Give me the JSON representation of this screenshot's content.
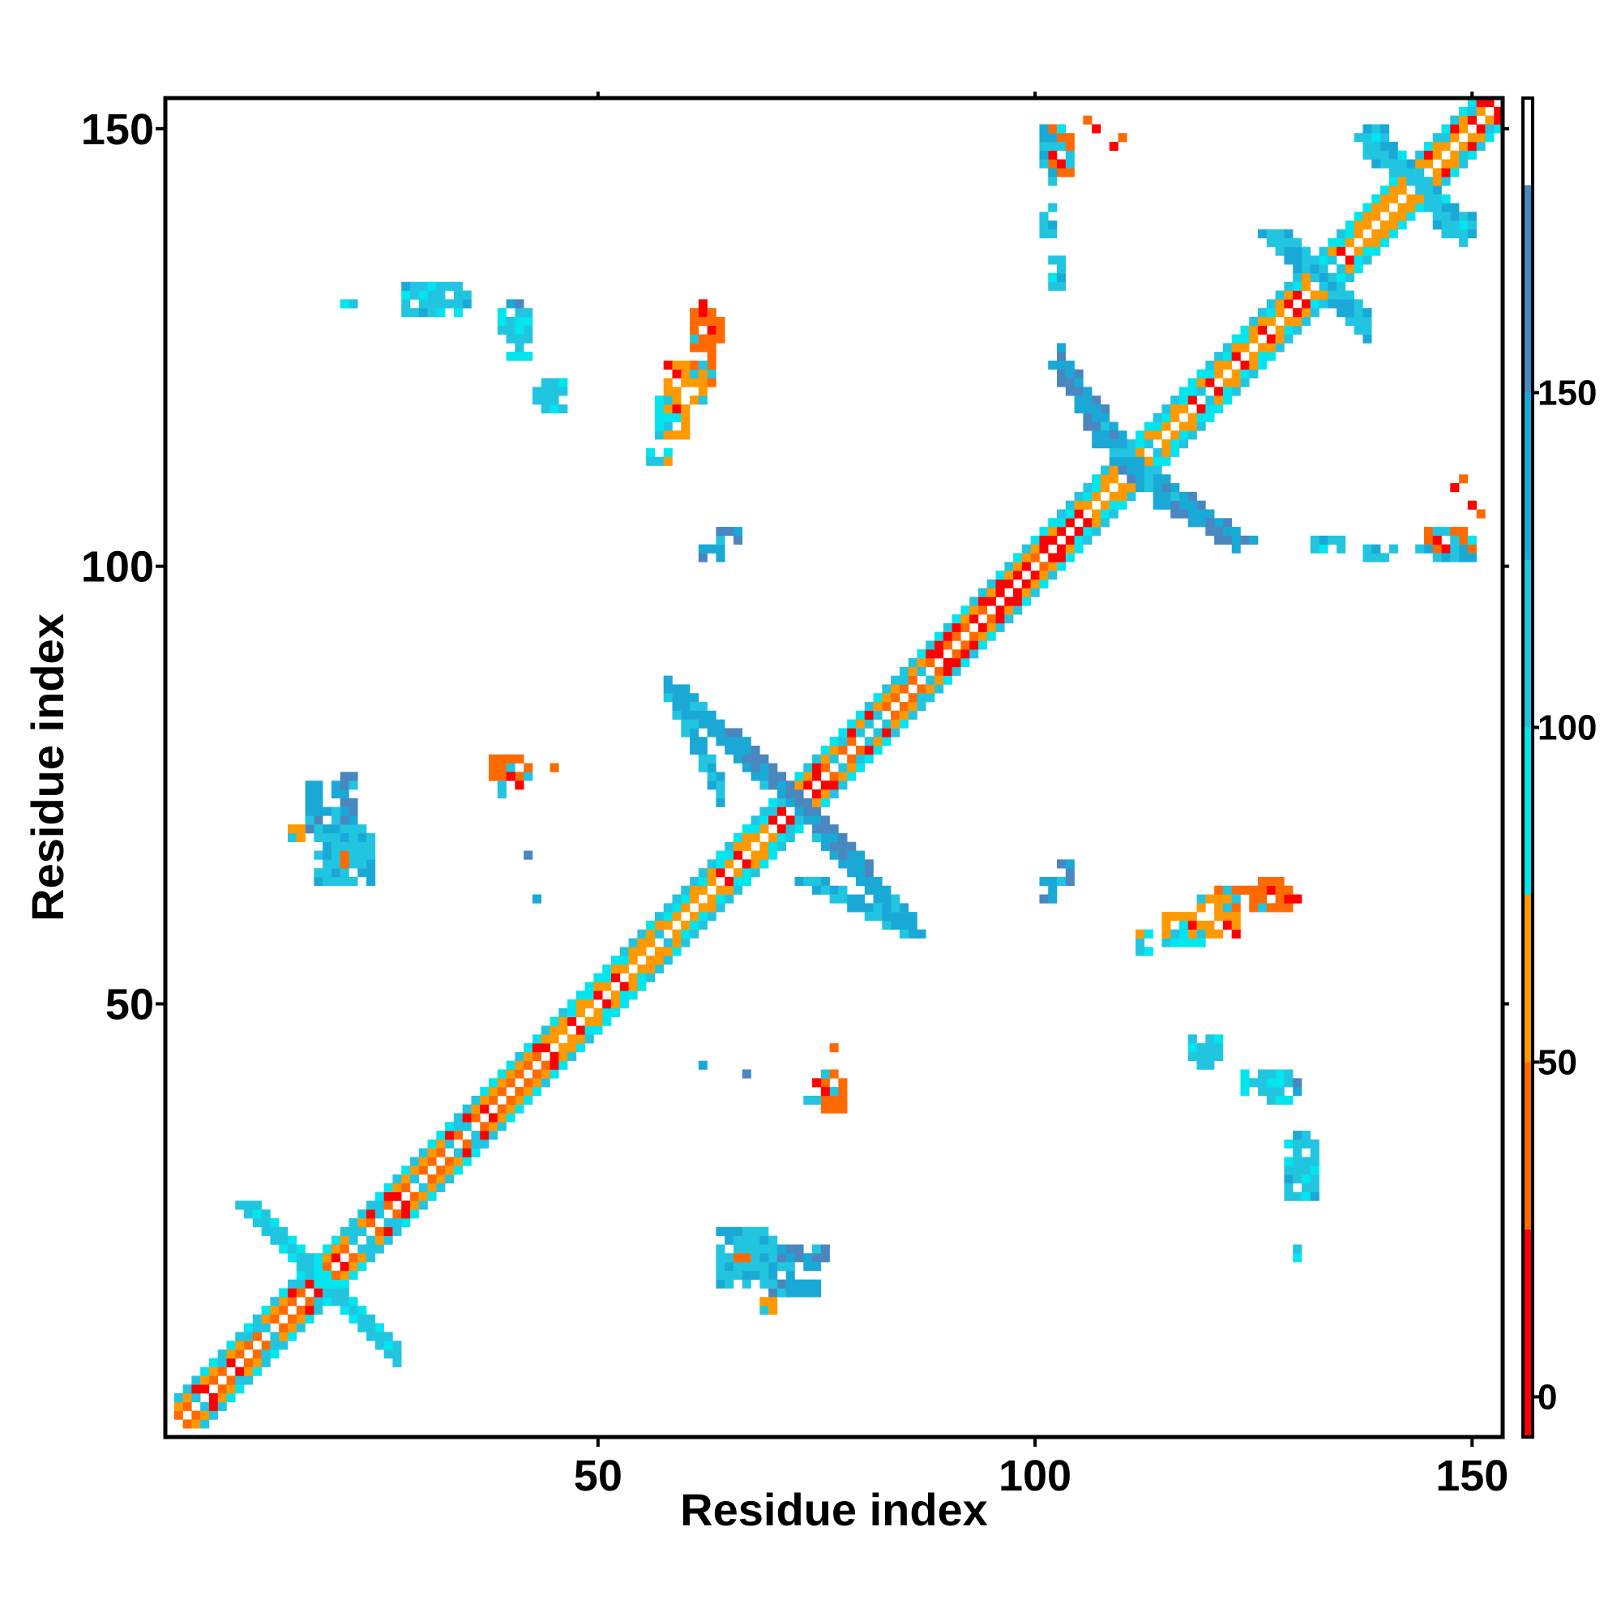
{
  "chart_data": {
    "type": "heatmap",
    "title": "",
    "xlabel": "Residue index",
    "ylabel": "Residue index",
    "xlim": [
      1,
      153
    ],
    "ylim": [
      1,
      153
    ],
    "x_ticks": [
      50,
      100,
      150
    ],
    "y_ticks": [
      50,
      100,
      150
    ],
    "grid": false,
    "colorbar": {
      "position": "right",
      "range": [
        -6,
        194
      ],
      "ticks": [
        0,
        50,
        100,
        150
      ],
      "bands": [
        {
          "from": -6,
          "to": 25,
          "color": "#ff0000"
        },
        {
          "from": 25,
          "to": 50,
          "color": "#ff6a00"
        },
        {
          "from": 50,
          "to": 75,
          "color": "#ff9900"
        },
        {
          "from": 75,
          "to": 100,
          "color": "#00e5ee"
        },
        {
          "from": 100,
          "to": 125,
          "color": "#21c5e0"
        },
        {
          "from": 125,
          "to": 150,
          "color": "#1aa9d6"
        },
        {
          "from": 150,
          "to": 181,
          "color": "#4a86c0"
        },
        {
          "from": 181,
          "to": 194,
          "color": "#ffffff"
        }
      ]
    },
    "value_palette": [
      "#ff0000",
      "#ff6a00",
      "#ff9900",
      "#00e5ee",
      "#21c5e0",
      "#4a86c0"
    ],
    "diagonal_bands": [
      {
        "from": 2,
        "to": 44,
        "value": 40
      },
      {
        "from": 44,
        "to": 70,
        "value": 55
      },
      {
        "from": 70,
        "to": 103,
        "value": 45
      },
      {
        "from": 103,
        "to": 120,
        "value": 60
      },
      {
        "from": 120,
        "to": 140,
        "value": 55
      },
      {
        "from": 140,
        "to": 152,
        "value": 50
      }
    ],
    "strand_pairs": [
      {
        "i1": 10,
        "j1": 27,
        "i2": 22,
        "j2": 15,
        "value": 105
      },
      {
        "i1": 59,
        "j1": 86,
        "i2": 70,
        "j2": 75,
        "value": 140
      },
      {
        "i1": 65,
        "j1": 81,
        "i2": 75,
        "j2": 71,
        "value": 145
      },
      {
        "i1": 74,
        "j1": 64,
        "i2": 86,
        "j2": 58,
        "value": 130
      },
      {
        "i1": 103,
        "j1": 123,
        "i2": 113,
        "j2": 109,
        "value": 140
      },
      {
        "i1": 115,
        "j1": 107,
        "i2": 124,
        "j2": 103,
        "value": 145
      },
      {
        "i1": 127,
        "j1": 138,
        "i2": 137,
        "j2": 129,
        "value": 120
      },
      {
        "i1": 138,
        "j1": 149,
        "i2": 148,
        "j2": 140,
        "value": 115
      }
    ],
    "contact_clusters": [
      {
        "x": 17,
        "y": 70,
        "w": 6,
        "h": 7,
        "value": 140
      },
      {
        "x": 38,
        "y": 76,
        "w": 5,
        "h": 3,
        "value": 40
      },
      {
        "x": 43,
        "y": 62,
        "w": 1,
        "h": 1,
        "value": 160
      },
      {
        "x": 64,
        "y": 18,
        "w": 7,
        "h": 7,
        "value": 120
      },
      {
        "x": 66,
        "y": 21,
        "w": 2,
        "h": 1,
        "value": 5
      },
      {
        "x": 69,
        "y": 15,
        "w": 2,
        "h": 2,
        "value": 60
      },
      {
        "x": 74,
        "y": 39,
        "w": 3,
        "h": 4,
        "value": 40
      },
      {
        "x": 77,
        "y": 45,
        "w": 1,
        "h": 1,
        "value": 5
      },
      {
        "x": 67,
        "y": 42,
        "w": 1,
        "h": 1,
        "value": 160
      },
      {
        "x": 57,
        "y": 115,
        "w": 4,
        "h": 4,
        "value": 60
      },
      {
        "x": 56,
        "y": 112,
        "w": 3,
        "h": 2,
        "value": 90
      },
      {
        "x": 60,
        "y": 121,
        "w": 4,
        "h": 3,
        "value": 40
      },
      {
        "x": 63,
        "y": 125,
        "w": 2,
        "h": 4,
        "value": 30
      },
      {
        "x": 62,
        "y": 101,
        "w": 3,
        "h": 2,
        "value": 150
      },
      {
        "x": 28,
        "y": 129,
        "w": 8,
        "h": 4,
        "value": 110
      },
      {
        "x": 22,
        "y": 130,
        "w": 1,
        "h": 1,
        "value": 110
      },
      {
        "x": 102,
        "y": 132,
        "w": 2,
        "h": 4,
        "value": 110
      },
      {
        "x": 102,
        "y": 145,
        "w": 3,
        "h": 5,
        "value": 30
      },
      {
        "x": 102,
        "y": 148,
        "w": 2,
        "h": 3,
        "value": 100
      },
      {
        "x": 106,
        "y": 151,
        "w": 1,
        "h": 1,
        "value": 5
      },
      {
        "x": 109,
        "y": 148,
        "w": 1,
        "h": 1,
        "value": 30
      },
      {
        "x": 103,
        "y": 64,
        "w": 2,
        "h": 3,
        "value": 140
      },
      {
        "x": 116,
        "y": 57,
        "w": 4,
        "h": 3,
        "value": 90
      },
      {
        "x": 119,
        "y": 58,
        "w": 5,
        "h": 5,
        "value": 50
      },
      {
        "x": 123,
        "y": 61,
        "w": 8,
        "h": 3,
        "value": 40
      },
      {
        "x": 129,
        "y": 62,
        "w": 2,
        "h": 1,
        "value": 5
      },
      {
        "x": 118,
        "y": 43,
        "w": 4,
        "h": 4,
        "value": 100
      },
      {
        "x": 124,
        "y": 39,
        "w": 6,
        "h": 4,
        "value": 95
      },
      {
        "x": 130,
        "y": 40,
        "w": 1,
        "h": 2,
        "value": 150
      },
      {
        "x": 131,
        "y": 34,
        "w": 1,
        "h": 1,
        "value": 105
      },
      {
        "x": 130,
        "y": 21,
        "w": 1,
        "h": 1,
        "value": 105
      },
      {
        "x": 138,
        "y": 101,
        "w": 4,
        "h": 2,
        "value": 120
      },
      {
        "x": 143,
        "y": 101,
        "w": 8,
        "h": 2,
        "value": 130
      },
      {
        "x": 146,
        "y": 102,
        "w": 2,
        "h": 1,
        "value": 5
      },
      {
        "x": 150,
        "y": 102,
        "w": 1,
        "h": 1,
        "value": 5
      },
      {
        "x": 150,
        "y": 107,
        "w": 1,
        "h": 1,
        "value": 5
      },
      {
        "x": 149,
        "y": 110,
        "w": 1,
        "h": 1,
        "value": 5
      },
      {
        "x": 146,
        "y": 138,
        "w": 5,
        "h": 3,
        "value": 115
      }
    ]
  }
}
